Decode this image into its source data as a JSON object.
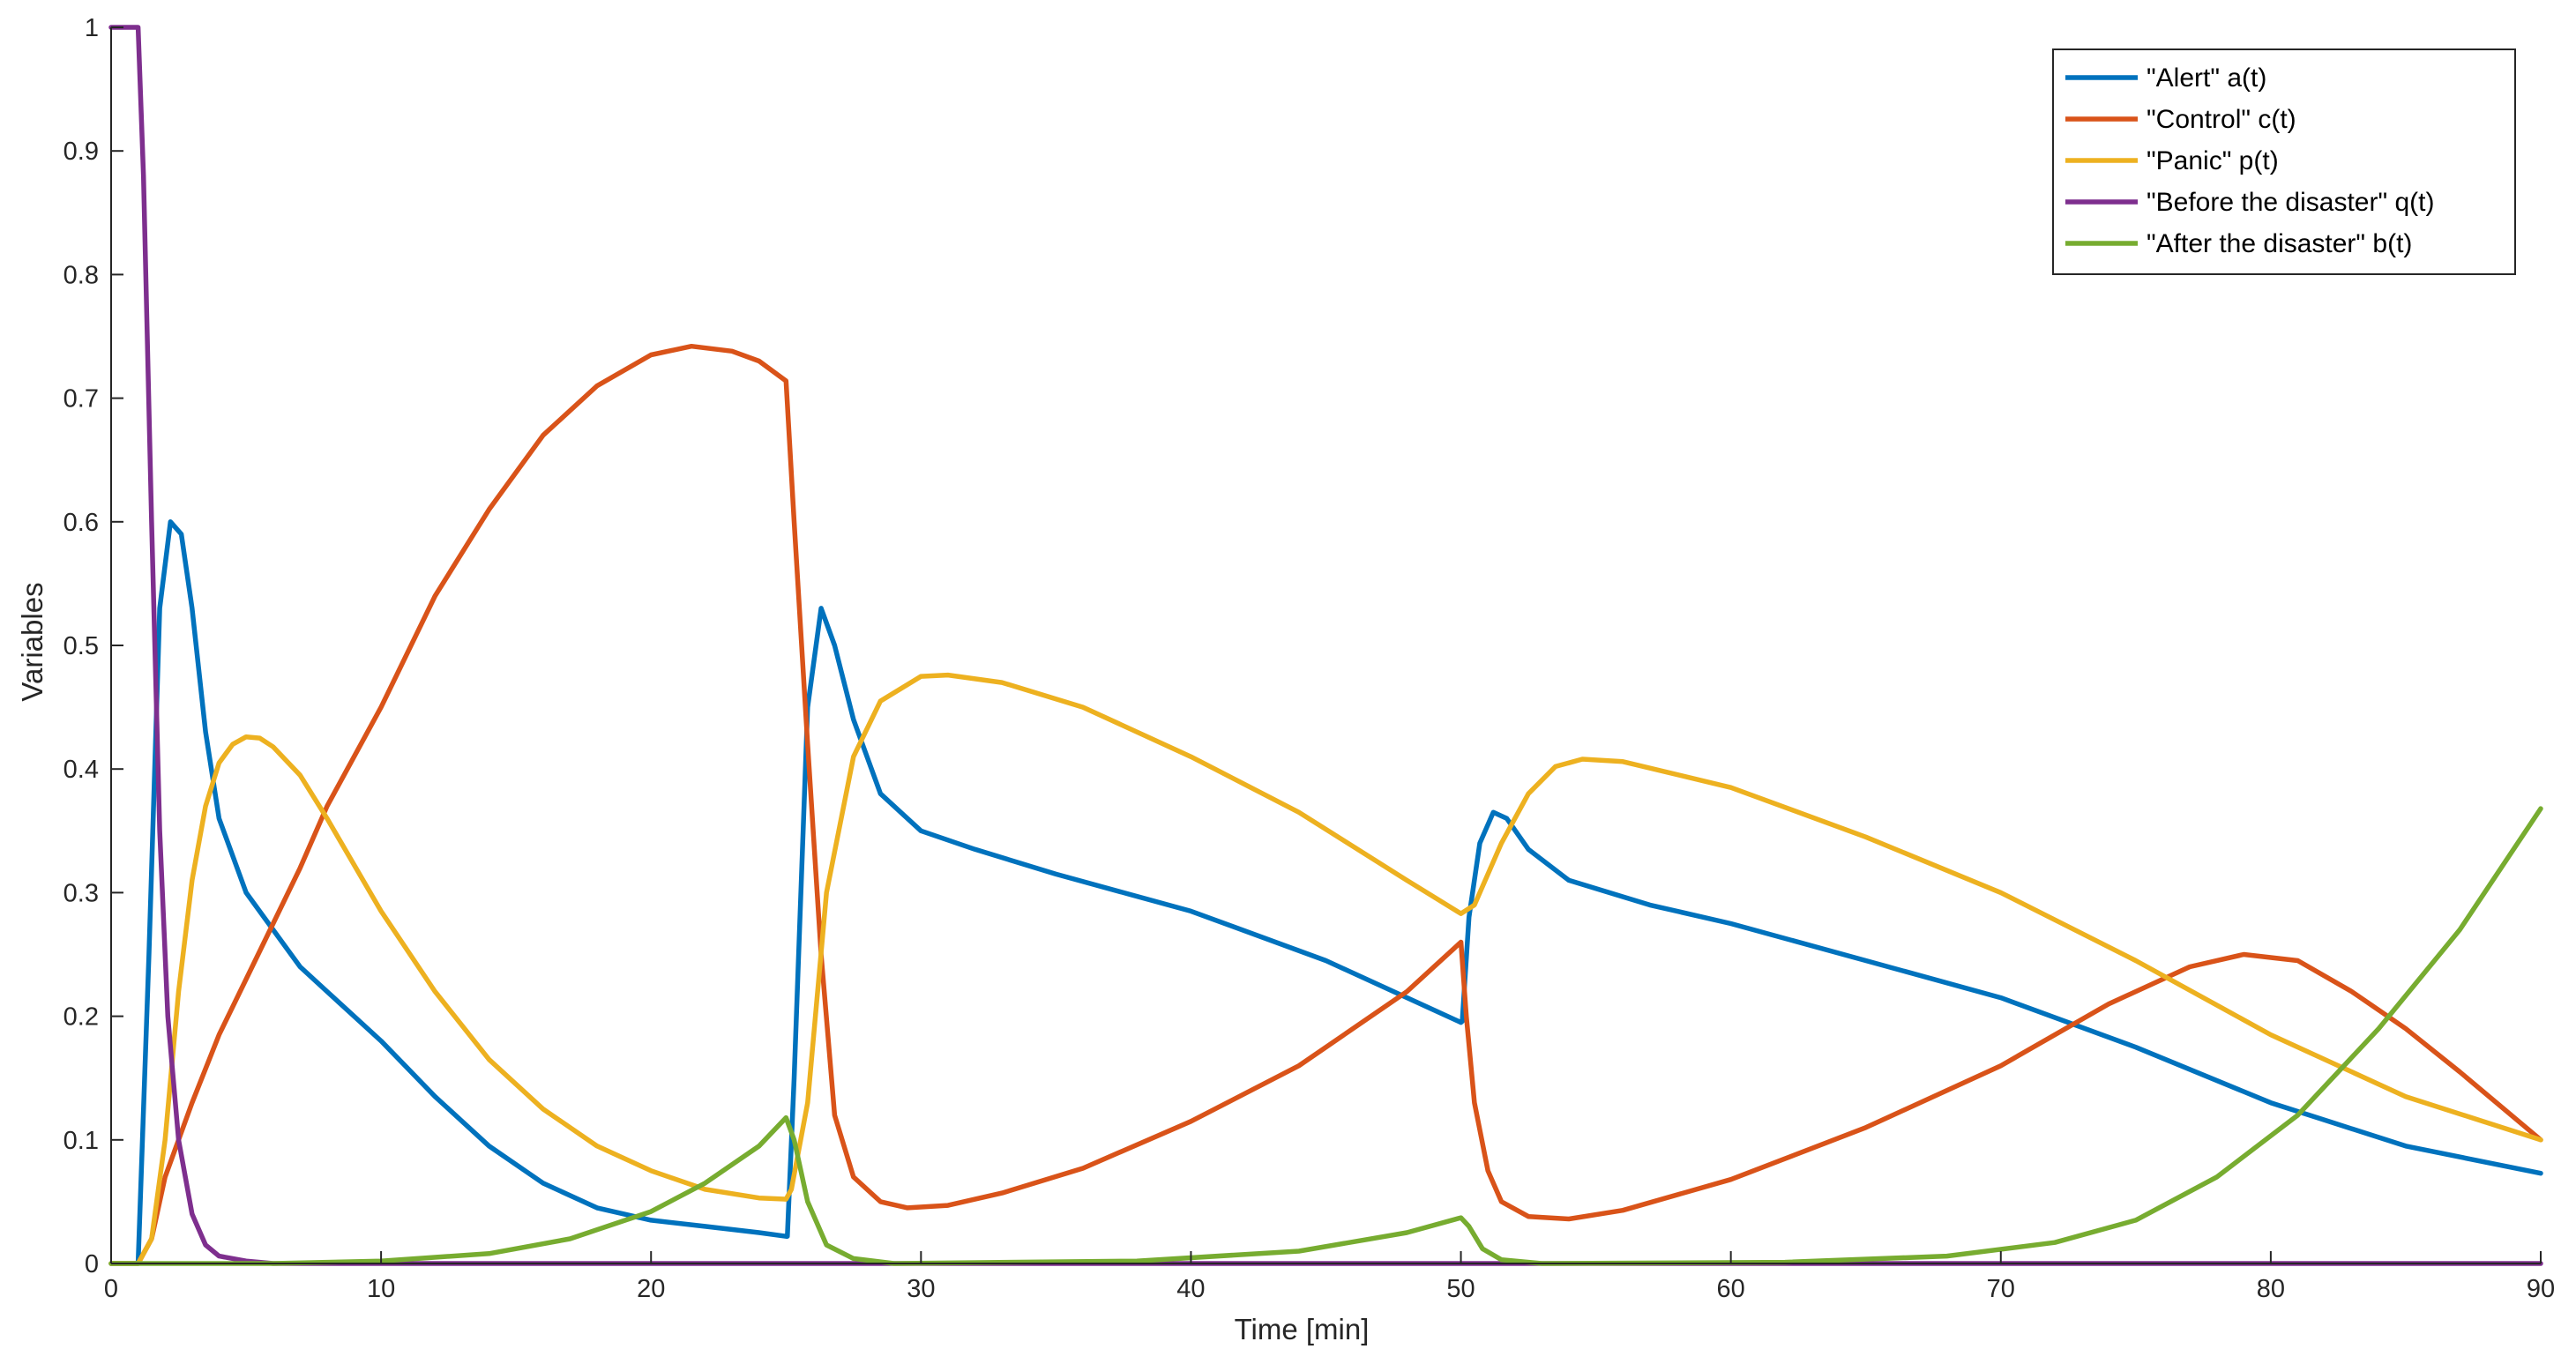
{
  "chart_data": {
    "type": "line",
    "title": "",
    "xlabel": "Time [min]",
    "ylabel": "Variables",
    "xlim": [
      0,
      90
    ],
    "ylim": [
      0,
      1
    ],
    "xticks": [
      "0",
      "10",
      "20",
      "30",
      "40",
      "50",
      "60",
      "70",
      "80",
      "90"
    ],
    "yticks": [
      "0",
      "0.1",
      "0.2",
      "0.3",
      "0.4",
      "0.5",
      "0.6",
      "0.7",
      "0.8",
      "0.9",
      "1"
    ],
    "grid": false,
    "legend_position": "top-right",
    "series": [
      {
        "name": "\"Alert\" a(t)",
        "color": "#0072BD",
        "points": [
          [
            0,
            0
          ],
          [
            1,
            0
          ],
          [
            1.4,
            0.25
          ],
          [
            1.8,
            0.53
          ],
          [
            2.2,
            0.6
          ],
          [
            2.6,
            0.59
          ],
          [
            3,
            0.53
          ],
          [
            3.5,
            0.43
          ],
          [
            4,
            0.36
          ],
          [
            5,
            0.3
          ],
          [
            6,
            0.27
          ],
          [
            7,
            0.24
          ],
          [
            8,
            0.22
          ],
          [
            10,
            0.18
          ],
          [
            12,
            0.135
          ],
          [
            14,
            0.095
          ],
          [
            16,
            0.065
          ],
          [
            18,
            0.045
          ],
          [
            20,
            0.035
          ],
          [
            22,
            0.03
          ],
          [
            24,
            0.025
          ],
          [
            25,
            0.022
          ],
          [
            25.05,
            0.022
          ],
          [
            25.3,
            0.15
          ],
          [
            25.8,
            0.45
          ],
          [
            26.3,
            0.53
          ],
          [
            26.8,
            0.5
          ],
          [
            27.5,
            0.44
          ],
          [
            28.5,
            0.38
          ],
          [
            30,
            0.35
          ],
          [
            32,
            0.335
          ],
          [
            35,
            0.315
          ],
          [
            40,
            0.285
          ],
          [
            45,
            0.245
          ],
          [
            50,
            0.195
          ],
          [
            50.05,
            0.196
          ],
          [
            50.3,
            0.28
          ],
          [
            50.7,
            0.34
          ],
          [
            51.2,
            0.365
          ],
          [
            51.7,
            0.36
          ],
          [
            52.5,
            0.335
          ],
          [
            54,
            0.31
          ],
          [
            57,
            0.29
          ],
          [
            60,
            0.275
          ],
          [
            65,
            0.245
          ],
          [
            70,
            0.215
          ],
          [
            75,
            0.175
          ],
          [
            80,
            0.13
          ],
          [
            85,
            0.095
          ],
          [
            90,
            0.073
          ]
        ]
      },
      {
        "name": "\"Control\" c(t)",
        "color": "#D95319",
        "points": [
          [
            0,
            0
          ],
          [
            1,
            0
          ],
          [
            1.5,
            0.02
          ],
          [
            2,
            0.07
          ],
          [
            3,
            0.13
          ],
          [
            4,
            0.185
          ],
          [
            5,
            0.23
          ],
          [
            6,
            0.275
          ],
          [
            7,
            0.32
          ],
          [
            8,
            0.37
          ],
          [
            10,
            0.45
          ],
          [
            12,
            0.54
          ],
          [
            14,
            0.61
          ],
          [
            16,
            0.67
          ],
          [
            18,
            0.71
          ],
          [
            20,
            0.735
          ],
          [
            21.5,
            0.742
          ],
          [
            23,
            0.738
          ],
          [
            24,
            0.73
          ],
          [
            25,
            0.714
          ],
          [
            25.3,
            0.6
          ],
          [
            25.8,
            0.42
          ],
          [
            26.3,
            0.25
          ],
          [
            26.8,
            0.12
          ],
          [
            27.5,
            0.07
          ],
          [
            28.5,
            0.05
          ],
          [
            29.5,
            0.045
          ],
          [
            31,
            0.047
          ],
          [
            33,
            0.057
          ],
          [
            36,
            0.077
          ],
          [
            40,
            0.115
          ],
          [
            44,
            0.16
          ],
          [
            48,
            0.22
          ],
          [
            50,
            0.26
          ],
          [
            50.2,
            0.2
          ],
          [
            50.5,
            0.13
          ],
          [
            51,
            0.075
          ],
          [
            51.5,
            0.05
          ],
          [
            52.5,
            0.038
          ],
          [
            54,
            0.036
          ],
          [
            56,
            0.043
          ],
          [
            60,
            0.068
          ],
          [
            65,
            0.11
          ],
          [
            70,
            0.16
          ],
          [
            74,
            0.21
          ],
          [
            77,
            0.24
          ],
          [
            79,
            0.25
          ],
          [
            81,
            0.245
          ],
          [
            83,
            0.22
          ],
          [
            85,
            0.19
          ],
          [
            87,
            0.155
          ],
          [
            90,
            0.1
          ]
        ]
      },
      {
        "name": "\"Panic\" p(t)",
        "color": "#EDB120",
        "points": [
          [
            0,
            0
          ],
          [
            1,
            0
          ],
          [
            1.5,
            0.02
          ],
          [
            2,
            0.1
          ],
          [
            2.5,
            0.22
          ],
          [
            3,
            0.31
          ],
          [
            3.5,
            0.37
          ],
          [
            4,
            0.405
          ],
          [
            4.5,
            0.42
          ],
          [
            5,
            0.426
          ],
          [
            5.5,
            0.425
          ],
          [
            6,
            0.418
          ],
          [
            7,
            0.395
          ],
          [
            8,
            0.36
          ],
          [
            10,
            0.285
          ],
          [
            12,
            0.22
          ],
          [
            14,
            0.165
          ],
          [
            16,
            0.125
          ],
          [
            18,
            0.095
          ],
          [
            20,
            0.075
          ],
          [
            22,
            0.06
          ],
          [
            24,
            0.053
          ],
          [
            25,
            0.052
          ],
          [
            25.2,
            0.06
          ],
          [
            25.8,
            0.13
          ],
          [
            26.5,
            0.3
          ],
          [
            27.5,
            0.41
          ],
          [
            28.5,
            0.455
          ],
          [
            30,
            0.475
          ],
          [
            31,
            0.476
          ],
          [
            33,
            0.47
          ],
          [
            36,
            0.45
          ],
          [
            40,
            0.41
          ],
          [
            44,
            0.365
          ],
          [
            48,
            0.31
          ],
          [
            50,
            0.283
          ],
          [
            50.5,
            0.29
          ],
          [
            51.5,
            0.34
          ],
          [
            52.5,
            0.38
          ],
          [
            53.5,
            0.402
          ],
          [
            54.5,
            0.408
          ],
          [
            56,
            0.406
          ],
          [
            60,
            0.385
          ],
          [
            65,
            0.345
          ],
          [
            70,
            0.3
          ],
          [
            75,
            0.245
          ],
          [
            80,
            0.185
          ],
          [
            85,
            0.135
          ],
          [
            90,
            0.1
          ]
        ]
      },
      {
        "name": "\"Before the disaster\" q(t)",
        "color": "#7E2F8E",
        "points": [
          [
            0,
            1
          ],
          [
            1,
            1
          ],
          [
            1.2,
            0.88
          ],
          [
            1.5,
            0.6
          ],
          [
            1.8,
            0.35
          ],
          [
            2.1,
            0.2
          ],
          [
            2.5,
            0.1
          ],
          [
            3,
            0.04
          ],
          [
            3.5,
            0.015
          ],
          [
            4,
            0.006
          ],
          [
            5,
            0.002
          ],
          [
            6,
            0
          ],
          [
            90,
            0
          ]
        ]
      },
      {
        "name": "\"After the disaster\" b(t)",
        "color": "#77AC30",
        "points": [
          [
            0,
            0
          ],
          [
            6,
            0
          ],
          [
            10,
            0.002
          ],
          [
            14,
            0.008
          ],
          [
            17,
            0.02
          ],
          [
            20,
            0.042
          ],
          [
            22,
            0.065
          ],
          [
            24,
            0.095
          ],
          [
            25,
            0.118
          ],
          [
            25.3,
            0.1
          ],
          [
            25.8,
            0.05
          ],
          [
            26.5,
            0.015
          ],
          [
            27.5,
            0.004
          ],
          [
            29,
            0
          ],
          [
            38,
            0.002
          ],
          [
            44,
            0.01
          ],
          [
            48,
            0.025
          ],
          [
            50,
            0.037
          ],
          [
            50.3,
            0.03
          ],
          [
            50.8,
            0.012
          ],
          [
            51.5,
            0.003
          ],
          [
            53,
            0
          ],
          [
            62,
            0.001
          ],
          [
            68,
            0.006
          ],
          [
            72,
            0.017
          ],
          [
            75,
            0.035
          ],
          [
            78,
            0.07
          ],
          [
            81,
            0.12
          ],
          [
            84,
            0.19
          ],
          [
            87,
            0.27
          ],
          [
            90,
            0.368
          ]
        ]
      }
    ]
  }
}
